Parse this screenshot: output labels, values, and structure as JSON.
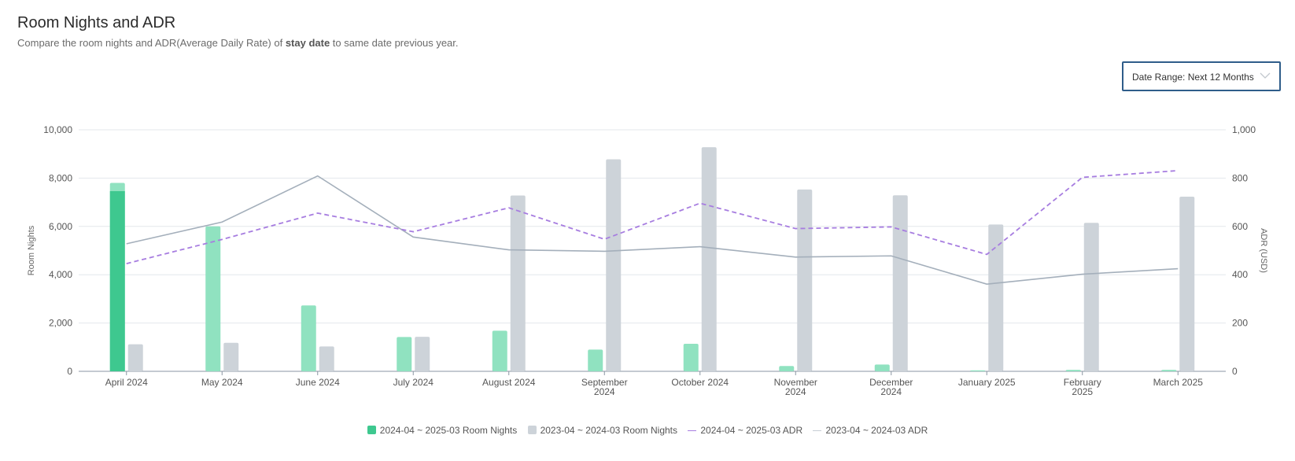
{
  "header": {
    "title": "Room Nights and ADR",
    "subtitle_pre": "Compare the room nights and ADR(Average Daily Rate) of ",
    "subtitle_bold": "stay date",
    "subtitle_post": " to same date previous year."
  },
  "filter": {
    "date_range_label": "Date Range: Next 12 Months"
  },
  "colors": {
    "current_rn": "#3ec88f",
    "current_rn_light": "#90e2c0",
    "prev_rn": "#cdd3d9",
    "current_adr": "#a77de0",
    "prev_adr": "#a4afbb",
    "grid": "#e3e7eb",
    "axis": "#8a96a3"
  },
  "chart_data": {
    "type": "bar",
    "categories": [
      [
        "April 2024"
      ],
      [
        "May 2024"
      ],
      [
        "June 2024"
      ],
      [
        "July 2024"
      ],
      [
        "August 2024"
      ],
      [
        "September",
        "2024"
      ],
      [
        "October 2024"
      ],
      [
        "November",
        "2024"
      ],
      [
        "December",
        "2024"
      ],
      [
        "January 2025"
      ],
      [
        "February",
        "2025"
      ],
      [
        "March 2025"
      ]
    ],
    "ylabel": "Room Nights",
    "ylabel_right": "ADR (USD)",
    "ylim": [
      0,
      10000
    ],
    "ylim_right": [
      0,
      1000
    ],
    "yticks": [
      "0",
      "2,000",
      "4,000",
      "6,000",
      "8,000",
      "10,000"
    ],
    "yticks_right": [
      "0",
      "200",
      "400",
      "600",
      "800",
      "1,000"
    ],
    "series": [
      {
        "name": "2024-04 ~ 2025-03 Room Nights",
        "kind": "bar",
        "axis": "left",
        "values": [
          7800,
          6000,
          2730,
          1420,
          1680,
          900,
          1140,
          220,
          280,
          40,
          60,
          60
        ],
        "highlight_values": [
          7460,
          0,
          0,
          0,
          0,
          0,
          0,
          0,
          0,
          0,
          0,
          0
        ]
      },
      {
        "name": "2023-04 ~ 2024-03 Room Nights",
        "kind": "bar",
        "axis": "left",
        "values": [
          1120,
          1180,
          1030,
          1430,
          7280,
          8780,
          9280,
          7530,
          7290,
          6080,
          6150,
          7230
        ]
      },
      {
        "name": "2024-04 ~ 2025-03 ADR",
        "kind": "line",
        "axis": "right",
        "dashed": true,
        "values": [
          446,
          546,
          655,
          578,
          677,
          547,
          696,
          591,
          598,
          484,
          803,
          831
        ]
      },
      {
        "name": "2023-04 ~ 2024-03 ADR",
        "kind": "line",
        "axis": "right",
        "dashed": false,
        "values": [
          528,
          618,
          809,
          556,
          503,
          497,
          516,
          473,
          478,
          361,
          402,
          425
        ]
      }
    ]
  }
}
